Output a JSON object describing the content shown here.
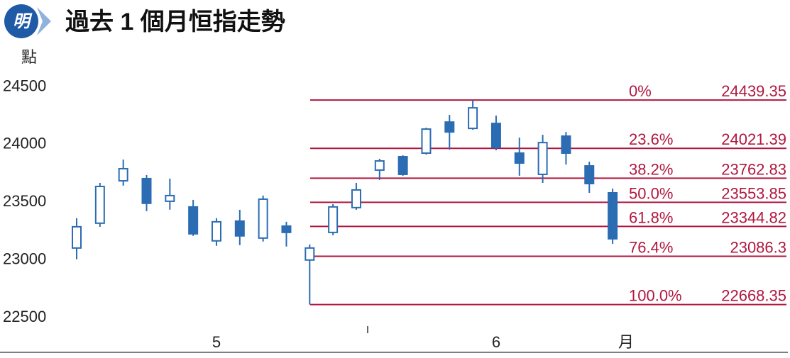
{
  "logo": "明",
  "chart_data": {
    "type": "candlestick",
    "title": "過去 1 個月恒指走勢",
    "y_label": "點",
    "x_unit": "月",
    "categories": [
      null,
      null,
      null,
      null,
      null,
      null,
      "5",
      null,
      null,
      null,
      null,
      null,
      null,
      null,
      null,
      null,
      null,
      null,
      "6",
      null,
      null,
      null,
      null,
      null
    ],
    "open": [
      23158,
      23373,
      23740,
      23759,
      23563,
      23514,
      23220,
      23391,
      23244,
      23348,
      23054,
      23293,
      23508,
      23833,
      23949,
      23980,
      24249,
      24194,
      24237,
      23980,
      23796,
      24127,
      23869,
      23636
    ],
    "high": [
      23416,
      23722,
      23924,
      23790,
      23759,
      23575,
      23416,
      23489,
      23612,
      23385,
      23189,
      23538,
      23722,
      23931,
      23961,
      24200,
      24311,
      24439,
      24305,
      24114,
      24139,
      24163,
      23906,
      23673
    ],
    "low": [
      23060,
      23342,
      23698,
      23477,
      23490,
      23263,
      23177,
      23183,
      23214,
      23171,
      22668,
      23269,
      23489,
      23747,
      23784,
      23967,
      24010,
      24182,
      24004,
      23784,
      23722,
      23881,
      23636,
      23195
    ],
    "close": [
      23342,
      23691,
      23845,
      23545,
      23612,
      23281,
      23385,
      23263,
      23581,
      23293,
      23158,
      23514,
      23661,
      23912,
      23796,
      24188,
      24163,
      24372,
      24029,
      23894,
      24071,
      23980,
      23716,
      23238
    ],
    "color": "#2b6cb3",
    "up_fill": "#ffffff",
    "ylim": [
      22500,
      24600
    ],
    "yticks": [
      22500,
      23000,
      23500,
      24000,
      24500
    ],
    "retracement_color": "#b0173f",
    "retracements": [
      {
        "label": "0%",
        "value": 24439.35
      },
      {
        "label": "23.6%",
        "value": 24021.39
      },
      {
        "label": "38.2%",
        "value": 23762.83
      },
      {
        "label": "50.0%",
        "value": 23553.85
      },
      {
        "label": "61.8%",
        "value": 23344.82
      },
      {
        "label": "76.4%",
        "value": 23086.3
      },
      {
        "label": "100.0%",
        "value": 22668.35
      }
    ]
  }
}
